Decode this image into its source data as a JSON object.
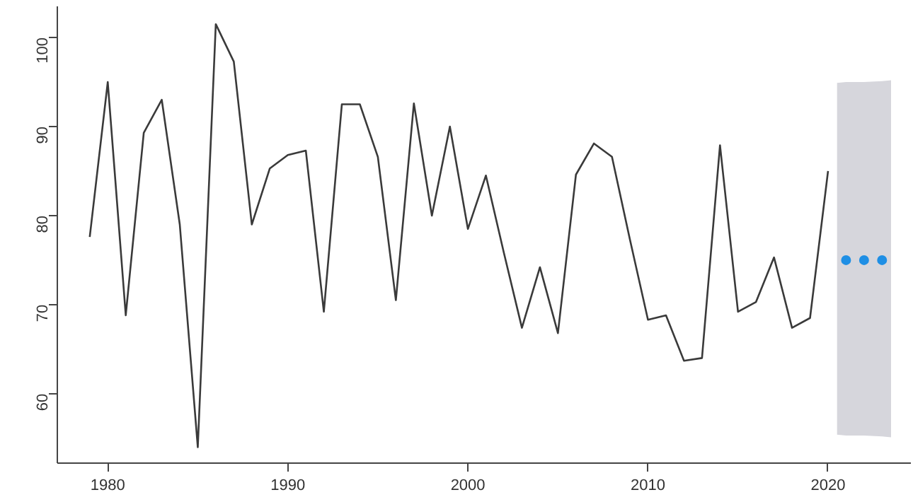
{
  "chart_data": {
    "type": "line",
    "xlim": [
      1977.2,
      2024.6
    ],
    "ylim": [
      52.2,
      103.5
    ],
    "xticks": [
      1980,
      1990,
      2000,
      2010,
      2020
    ],
    "yticks": [
      60,
      70,
      80,
      90,
      100
    ],
    "grid": false,
    "series": [
      {
        "color": "#3a3a3a",
        "x": [
          1979,
          1980,
          1981,
          1982,
          1983,
          1984,
          1985,
          1986,
          1987,
          1988,
          1989,
          1990,
          1991,
          1992,
          1993,
          1994,
          1995,
          1996,
          1997,
          1998,
          1999,
          2000,
          2001,
          2002,
          2003,
          2004,
          2005,
          2006,
          2007,
          2008,
          2009,
          2010,
          2011,
          2012,
          2013,
          2014,
          2015,
          2016,
          2017,
          2018,
          2019,
          2020
        ],
        "values": [
          77.6,
          95,
          68.8,
          89.3,
          93,
          79,
          54,
          101.5,
          97.3,
          79,
          85.3,
          86.8,
          87.3,
          69.2,
          92.5,
          92.5,
          86.6,
          70.5,
          92.6,
          80,
          90,
          78.5,
          84.5,
          75.8,
          67.4,
          74.2,
          66.8,
          84.6,
          88.1,
          86.6,
          77.3,
          68.3,
          68.8,
          63.7,
          64,
          87.9,
          69.2,
          70.3,
          75.3,
          67.4,
          68.5,
          85
        ]
      },
      {
        "type": "scatter",
        "marker": "circle",
        "color": "#1f8fe5",
        "x": [
          2020.5,
          2021,
          2022,
          2023,
          2023.5
        ],
        "values": [
          null,
          75,
          75,
          75,
          null
        ],
        "lower": [
          55.4,
          55.3,
          55.3,
          55.2,
          55.1
        ],
        "upper": [
          94.9,
          95,
          95,
          95.1,
          95.2
        ]
      }
    ]
  }
}
